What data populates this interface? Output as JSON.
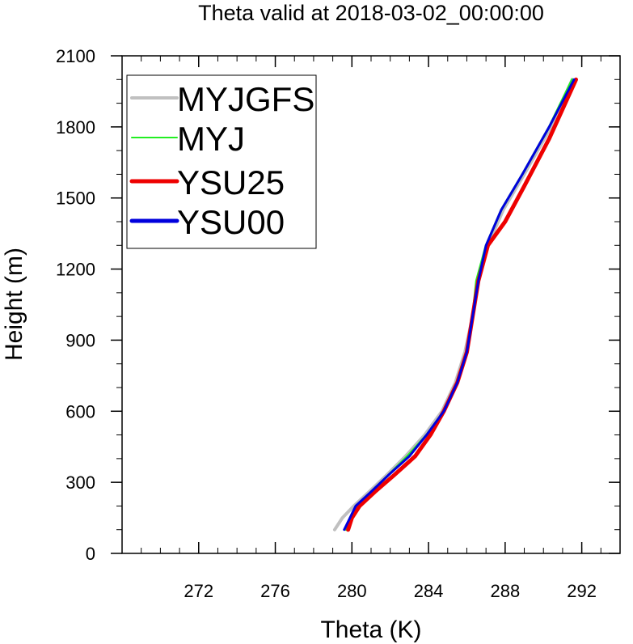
{
  "chart_data": {
    "type": "line",
    "title": "Theta valid at 2018-03-02_00:00:00",
    "xlabel": "Theta (K)",
    "ylabel": "Height (m)",
    "xlim": [
      268,
      294
    ],
    "ylim": [
      0,
      2100
    ],
    "xticks": [
      272,
      276,
      280,
      284,
      288,
      292
    ],
    "yticks": [
      0,
      300,
      600,
      900,
      1200,
      1500,
      1800,
      2100
    ],
    "x_minor_step": 1,
    "y_minor_step": 100,
    "grid": false,
    "legend_position": "top-left",
    "series": [
      {
        "name": "MYJGFS",
        "color": "#c0c0c0",
        "x": [
          279.1,
          279.5,
          280.1,
          280.9,
          281.8,
          282.8,
          283.8,
          284.7,
          285.4,
          285.9,
          286.3,
          286.6,
          287.1,
          287.9,
          289.0,
          290.4,
          291.5
        ],
        "y": [
          100,
          150,
          200,
          260,
          330,
          410,
          500,
          600,
          720,
          850,
          1000,
          1150,
          1300,
          1450,
          1600,
          1800,
          2000
        ]
      },
      {
        "name": "MYJ",
        "color": "#22ee22",
        "x": [
          279.7,
          279.9,
          280.3,
          281.0,
          281.9,
          282.9,
          283.9,
          284.8,
          285.5,
          286.0,
          286.3,
          286.5,
          287.0,
          287.8,
          288.9,
          290.3,
          291.5
        ],
        "y": [
          100,
          150,
          200,
          260,
          330,
          410,
          500,
          600,
          720,
          850,
          1000,
          1150,
          1300,
          1450,
          1600,
          1800,
          2000
        ]
      },
      {
        "name": "YSU25",
        "color": "#ee0000",
        "x": [
          279.8,
          280.0,
          280.4,
          281.2,
          282.2,
          283.3,
          284.1,
          284.8,
          285.5,
          286.0,
          286.3,
          286.6,
          287.1,
          288.0,
          289.0,
          290.3,
          291.7
        ],
        "y": [
          100,
          150,
          200,
          260,
          330,
          410,
          500,
          600,
          720,
          850,
          1000,
          1150,
          1300,
          1400,
          1550,
          1750,
          2000
        ]
      },
      {
        "name": "YSU00",
        "color": "#0000dd",
        "x": [
          279.6,
          279.9,
          280.2,
          281.0,
          281.9,
          283.0,
          283.9,
          284.8,
          285.5,
          286.0,
          286.3,
          286.6,
          287.0,
          287.8,
          288.9,
          290.3,
          291.6
        ],
        "y": [
          100,
          150,
          200,
          260,
          330,
          410,
          500,
          600,
          720,
          850,
          1000,
          1150,
          1300,
          1450,
          1600,
          1800,
          2000
        ]
      }
    ]
  }
}
